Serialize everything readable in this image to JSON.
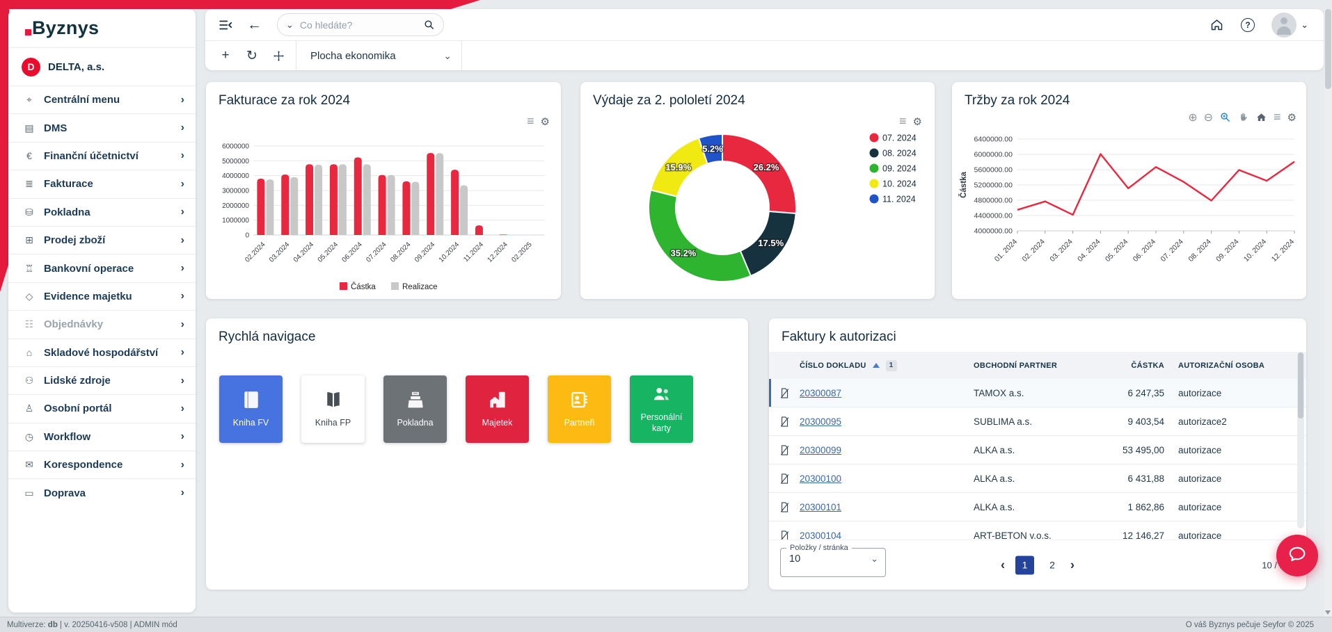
{
  "colors": {
    "brand_red": "#e51b3d",
    "navy_text": "#14324a",
    "accent_blue": "#24439b",
    "link_blue": "#3b67a6"
  },
  "topbar": {
    "search_placeholder": "Co hledáte?",
    "workspace": "Plocha ekonomika"
  },
  "sidebar": {
    "logo": "Byznys",
    "company": {
      "initial": "D",
      "name": "DELTA, a.s."
    },
    "items": [
      {
        "label": "Centrální menu",
        "icon": "location-pin-icon",
        "disabled": false
      },
      {
        "label": "DMS",
        "icon": "folder-icon",
        "disabled": false
      },
      {
        "label": "Finanční účetnictví",
        "icon": "euro-icon",
        "disabled": false
      },
      {
        "label": "Fakturace",
        "icon": "invoice-icon",
        "disabled": false
      },
      {
        "label": "Pokladna",
        "icon": "cash-register-icon",
        "disabled": false
      },
      {
        "label": "Prodej zboží",
        "icon": "sale-icon",
        "disabled": false
      },
      {
        "label": "Bankovní operace",
        "icon": "bank-icon",
        "disabled": false
      },
      {
        "label": "Evidence majetku",
        "icon": "asset-icon",
        "disabled": false
      },
      {
        "label": "Objednávky",
        "icon": "orders-icon",
        "disabled": true
      },
      {
        "label": "Skladové hospodářství",
        "icon": "warehouse-icon",
        "disabled": false
      },
      {
        "label": "Lidské zdroje",
        "icon": "people-icon",
        "disabled": false
      },
      {
        "label": "Osobní portál",
        "icon": "person-icon",
        "disabled": false
      },
      {
        "label": "Workflow",
        "icon": "workflow-icon",
        "disabled": false
      },
      {
        "label": "Korespondence",
        "icon": "mail-icon",
        "disabled": false
      },
      {
        "label": "Doprava",
        "icon": "transport-icon",
        "disabled": false
      }
    ]
  },
  "chart_data": [
    {
      "type": "bar",
      "title": "Fakturace za rok 2024",
      "categories": [
        "02.2024",
        "03.2024",
        "04.2024",
        "05.2024",
        "06.2024",
        "07.2024",
        "08.2024",
        "09.2024",
        "10.2024",
        "11.2024",
        "12.2024",
        "02.2025"
      ],
      "series": [
        {
          "name": "Částka",
          "color": "#e8283f",
          "values": [
            3800000,
            4080000,
            4770000,
            4770000,
            5230000,
            4050000,
            3620000,
            5530000,
            4400000,
            650000,
            30000,
            0
          ]
        },
        {
          "name": "Realizace",
          "color": "#c8c8c8",
          "values": [
            3750000,
            3900000,
            4740000,
            4770000,
            4770000,
            4050000,
            3590000,
            5520000,
            3350000,
            0,
            0,
            0
          ]
        }
      ],
      "ylim": [
        0,
        6000000
      ],
      "ytick_step": 1000000,
      "grid": true,
      "legend_position": "bottom"
    },
    {
      "type": "pie",
      "donut": true,
      "title": "Výdaje za 2. pololetí 2024",
      "labels": [
        "07. 2024",
        "08. 2024",
        "09. 2024",
        "10. 2024",
        "11. 2024"
      ],
      "values": [
        26.2,
        17.5,
        35.2,
        15.9,
        5.2
      ],
      "value_labels": [
        "26.2%",
        "17.5%",
        "35.2%",
        "15.9%",
        "5.2%"
      ],
      "colors": [
        "#e8283f",
        "#16323e",
        "#2eb42e",
        "#f0ea12",
        "#2052c8"
      ],
      "legend_position": "right"
    },
    {
      "type": "line",
      "title": "Tržby za rok 2024",
      "x": [
        "01. 2024",
        "02. 2024",
        "03. 2024",
        "04. 2024",
        "05. 2024",
        "06. 2024",
        "07. 2024",
        "08. 2024",
        "09. 2024",
        "10. 2024",
        "12. 2024"
      ],
      "values": [
        4550000,
        4770000,
        4420000,
        6010000,
        5110000,
        5670000,
        5280000,
        4790000,
        5590000,
        5310000,
        5810000
      ],
      "color": "#e8283f",
      "ylabel": "Částka",
      "ylim": [
        4000000,
        6400000
      ],
      "ytick_step": 400000,
      "grid": true
    }
  ],
  "quick_nav": {
    "title": "Rychlá navigace",
    "tiles": [
      {
        "label": "Kniha FV",
        "icon": "book-icon",
        "bg": "#4673e0",
        "fg": "#ffffff"
      },
      {
        "label": "Kniha FP",
        "icon": "open-book-icon",
        "bg": "#ffffff",
        "fg": "#3f464d"
      },
      {
        "label": "Pokladna",
        "icon": "cash-register-icon",
        "bg": "#6d7277",
        "fg": "#ffffff"
      },
      {
        "label": "Majetek",
        "icon": "building-icon",
        "bg": "#e0243f",
        "fg": "#ffffff"
      },
      {
        "label": "Partneři",
        "icon": "id-card-icon",
        "bg": "#fcba12",
        "fg": "#ffffff"
      },
      {
        "label": "Personální karty",
        "icon": "people-icon",
        "bg": "#17b464",
        "fg": "#ffffff"
      }
    ]
  },
  "invoices": {
    "title": "Faktury k autorizaci",
    "columns": [
      "ČÍSLO DOKLADU",
      "OBCHODNÍ PARTNER",
      "ČÁSTKA",
      "AUTORIZAČNÍ OSOBA"
    ],
    "sort_badge": "1",
    "rows": [
      {
        "doc": "20300087",
        "partner": "TAMOX a.s.",
        "amount": "6 247,35",
        "person": "autorizace"
      },
      {
        "doc": "20300095",
        "partner": "SUBLIMA a.s.",
        "amount": "9 403,54",
        "person": "autorizace2"
      },
      {
        "doc": "20300099",
        "partner": "ALKA a.s.",
        "amount": "53 495,00",
        "person": "autorizace"
      },
      {
        "doc": "20300100",
        "partner": "ALKA a.s.",
        "amount": "6 431,88",
        "person": "autorizace"
      },
      {
        "doc": "20300101",
        "partner": "ALKA a.s.",
        "amount": "1 862,86",
        "person": "autorizace"
      },
      {
        "doc": "20300104",
        "partner": "ART-BETON v.o.s.",
        "amount": "12 146,27",
        "person": "autorizace"
      }
    ],
    "pagination": {
      "per_page_label": "Položky / stránka",
      "per_page_value": "10",
      "pages": [
        "1",
        "2"
      ],
      "active_page": "1",
      "count": "10 / 16 ("
    }
  },
  "footer": {
    "multiverze_label": "Multiverze: ",
    "db": "db",
    "version_suffix": " | v. 20250416-v508 | ADMIN mód",
    "right": "O váš Byznys pečuje Seyfor © 2025"
  }
}
